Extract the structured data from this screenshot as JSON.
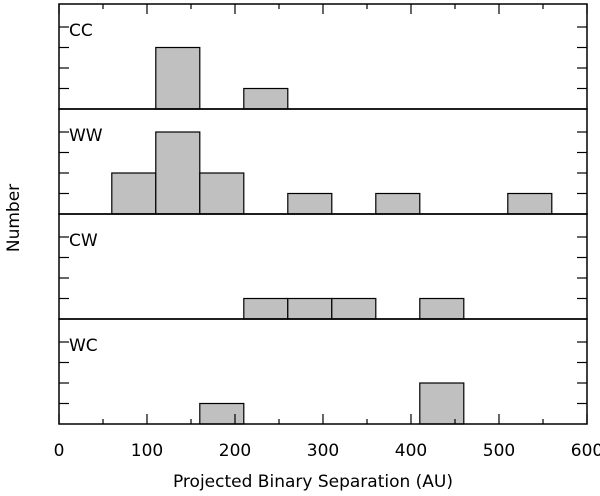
{
  "chart_data": {
    "type": "bar",
    "xlabel": "Projected Binary Separation (AU)",
    "ylabel": "Number",
    "xlim": [
      0,
      600
    ],
    "x_ticks": [
      "0",
      "100",
      "200",
      "300",
      "400",
      "500",
      "600"
    ],
    "bin_width": 50,
    "ylim": [
      0,
      4
    ],
    "grid": false,
    "panels": [
      {
        "label": "CC",
        "bins": [
          {
            "x_start": 110,
            "count": 3
          },
          {
            "x_start": 210,
            "count": 1
          }
        ]
      },
      {
        "label": "WW",
        "bins": [
          {
            "x_start": 60,
            "count": 2
          },
          {
            "x_start": 110,
            "count": 4
          },
          {
            "x_start": 160,
            "count": 2
          },
          {
            "x_start": 260,
            "count": 1
          },
          {
            "x_start": 360,
            "count": 1
          },
          {
            "x_start": 510,
            "count": 1
          }
        ]
      },
      {
        "label": "CW",
        "bins": [
          {
            "x_start": 210,
            "count": 1
          },
          {
            "x_start": 260,
            "count": 1
          },
          {
            "x_start": 310,
            "count": 1
          },
          {
            "x_start": 410,
            "count": 1
          }
        ]
      },
      {
        "label": "WC",
        "bins": [
          {
            "x_start": 160,
            "count": 1
          },
          {
            "x_start": 410,
            "count": 2
          }
        ]
      }
    ]
  }
}
